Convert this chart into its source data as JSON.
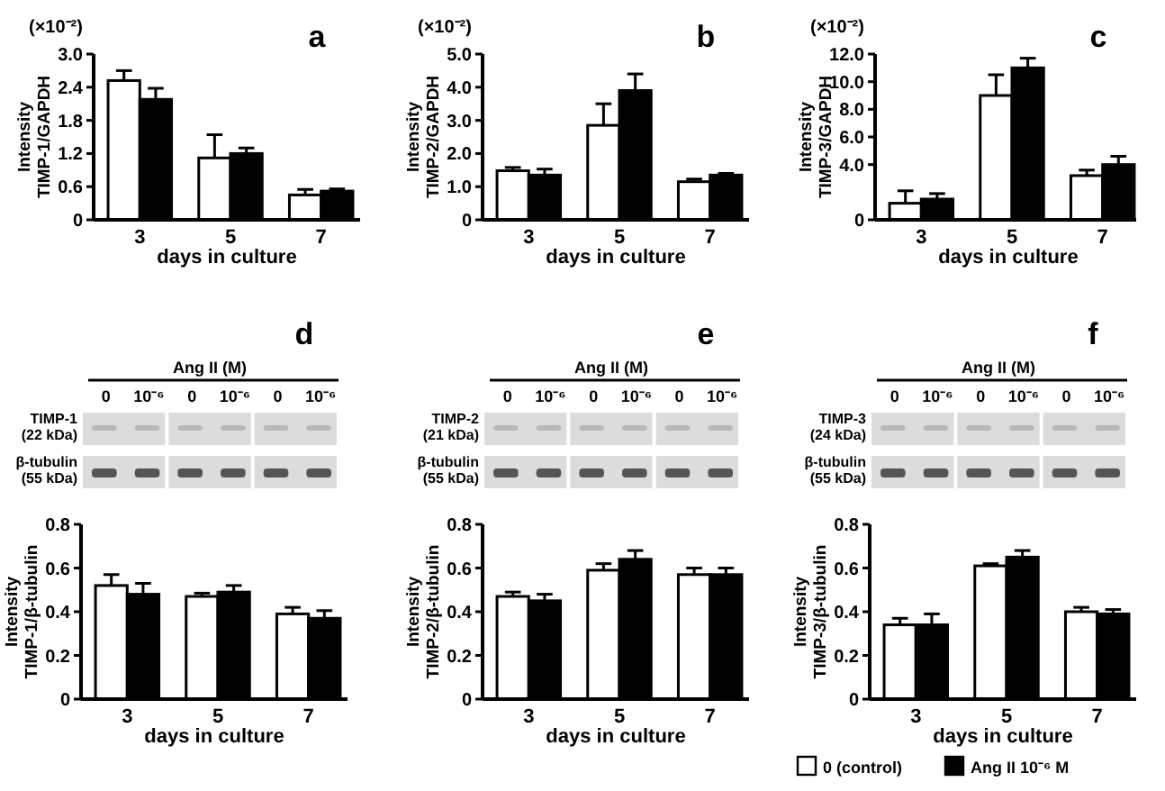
{
  "chart_data": [
    {
      "type": "bar",
      "title": "a",
      "xlabel": "days in culture",
      "ylabel": "Intensity\nTIMP-1/GAPDH",
      "annotations": [
        "(×10⁻²)"
      ],
      "categories": [
        "3",
        "5",
        "7"
      ],
      "ylim": [
        0,
        3
      ],
      "yticks": [
        0,
        {
          "value": 0.6,
          "label": "0.6"
        },
        {
          "value": 1.2,
          "label": "1.2"
        },
        {
          "value": 1.8,
          "label": "1.8"
        },
        {
          "value": 2.4,
          "label": "2.4"
        },
        {
          "value": 3,
          "label": "3.0"
        }
      ],
      "legend": false,
      "series": [
        {
          "color": "#ffffff",
          "values": [
            2.52,
            1.12,
            0.45
          ],
          "errors": [
            0.18,
            0.42,
            0.1
          ]
        },
        {
          "color": "#000000",
          "values": [
            2.18,
            1.2,
            0.52
          ],
          "errors": [
            0.2,
            0.1,
            0.04
          ]
        }
      ]
    },
    {
      "type": "bar",
      "title": "b",
      "xlabel": "days in culture",
      "ylabel": "Intensity\nTIMP-2/GAPDH",
      "annotations": [
        "(×10⁻²)"
      ],
      "categories": [
        "3",
        "5",
        "7"
      ],
      "ylim": [
        0,
        5
      ],
      "yticks": [
        0,
        {
          "value": 1,
          "label": "1.0"
        },
        {
          "value": 2,
          "label": "2.0"
        },
        {
          "value": 3,
          "label": "3.0"
        },
        {
          "value": 4,
          "label": "4.0"
        },
        {
          "value": 5,
          "label": "5.0"
        }
      ],
      "legend": false,
      "series": [
        {
          "color": "#ffffff",
          "values": [
            1.48,
            2.85,
            1.15
          ],
          "errors": [
            0.1,
            0.65,
            0.08
          ]
        },
        {
          "color": "#000000",
          "values": [
            1.35,
            3.9,
            1.35
          ],
          "errors": [
            0.18,
            0.5,
            0.05
          ]
        }
      ]
    },
    {
      "type": "bar",
      "title": "c",
      "xlabel": "days in culture",
      "ylabel": "Intensity\nTIMP-3/GAPDH",
      "annotations": [
        "(×10⁻²)"
      ],
      "categories": [
        "3",
        "5",
        "7"
      ],
      "ylim": [
        0,
        12
      ],
      "yticks": [
        0,
        {
          "value": 4,
          "label": "4.0"
        },
        {
          "value": 6,
          "label": "6.0"
        },
        {
          "value": 8,
          "label": "8.0"
        },
        {
          "value": 10,
          "label": "10.0"
        },
        {
          "value": 12,
          "label": "12.0"
        }
      ],
      "legend": false,
      "series": [
        {
          "color": "#ffffff",
          "values": [
            1.2,
            9.0,
            3.2
          ],
          "errors": [
            0.9,
            1.5,
            0.4
          ]
        },
        {
          "color": "#000000",
          "values": [
            1.5,
            11.0,
            4.0
          ],
          "errors": [
            0.4,
            0.7,
            0.6
          ]
        }
      ]
    },
    {
      "type": "bar",
      "title": "d",
      "xlabel": "days in culture",
      "ylabel": "Intensity\nTIMP-1/β-tubulin",
      "annotations": [
        "Ang II (M)",
        "0",
        "10⁻⁶",
        "0",
        "10⁻⁶",
        "0",
        "10⁻⁶",
        "TIMP-1\n(22 kDa)",
        "β-tubulin\n(55 kDa)"
      ],
      "categories": [
        "3",
        "5",
        "7"
      ],
      "ylim": [
        0,
        0.8
      ],
      "yticks": [
        0,
        0.2,
        0.4,
        0.6,
        0.8
      ],
      "legend": false,
      "series": [
        {
          "color": "#ffffff",
          "values": [
            0.52,
            0.47,
            0.39
          ],
          "errors": [
            0.05,
            0.015,
            0.03
          ]
        },
        {
          "color": "#000000",
          "values": [
            0.48,
            0.49,
            0.37
          ],
          "errors": [
            0.05,
            0.03,
            0.035
          ]
        }
      ]
    },
    {
      "type": "bar",
      "title": "e",
      "xlabel": "days in culture",
      "ylabel": "Intensity\nTIMP-2/β-tubulin",
      "annotations": [
        "Ang II (M)",
        "0",
        "10⁻⁶",
        "0",
        "10⁻⁶",
        "0",
        "10⁻⁶",
        "TIMP-2\n(21 kDa)",
        "β-tubulin\n(55 kDa)"
      ],
      "categories": [
        "3",
        "5",
        "7"
      ],
      "ylim": [
        0,
        0.8
      ],
      "yticks": [
        0,
        0.2,
        0.4,
        0.6,
        0.8
      ],
      "legend": false,
      "series": [
        {
          "color": "#ffffff",
          "values": [
            0.47,
            0.59,
            0.57
          ],
          "errors": [
            0.02,
            0.03,
            0.03
          ]
        },
        {
          "color": "#000000",
          "values": [
            0.45,
            0.64,
            0.57
          ],
          "errors": [
            0.03,
            0.04,
            0.03
          ]
        }
      ]
    },
    {
      "type": "bar",
      "title": "f",
      "xlabel": "days in culture",
      "ylabel": "Intensity\nTIMP-3/β-tubulin",
      "annotations": [
        "Ang II (M)",
        "0",
        "10⁻⁶",
        "0",
        "10⁻⁶",
        "0",
        "10⁻⁶",
        "TIMP-3\n(24 kDa)",
        "β-tubulin\n(55 kDa)"
      ],
      "categories": [
        "3",
        "5",
        "7"
      ],
      "ylim": [
        0,
        0.8
      ],
      "yticks": [
        0,
        0.2,
        0.4,
        0.6,
        0.8
      ],
      "legend": "bottom",
      "series": [
        {
          "name": "0 (control)",
          "color": "#ffffff",
          "values": [
            0.34,
            0.61,
            0.4
          ],
          "errors": [
            0.03,
            0.01,
            0.02
          ]
        },
        {
          "name": "Ang II 10⁻⁶ M",
          "color": "#000000",
          "values": [
            0.34,
            0.65,
            0.39
          ],
          "errors": [
            0.05,
            0.03,
            0.02
          ]
        }
      ]
    }
  ]
}
